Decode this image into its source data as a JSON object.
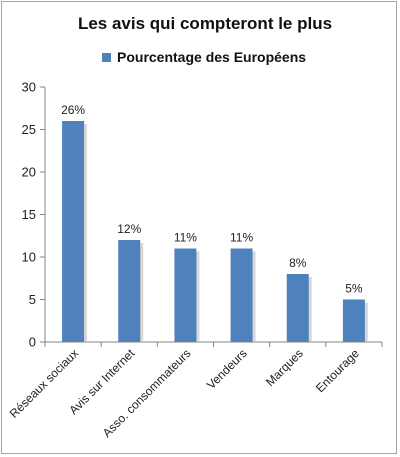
{
  "chart_data": {
    "type": "bar",
    "title": "Les avis qui compteront le plus",
    "legend": {
      "position": "top",
      "entries": [
        "Pourcentage des Européens"
      ]
    },
    "categories": [
      "Réseaux sociaux",
      "Avis sur Internet",
      "Asso. consommateurs",
      "Vendeurs",
      "Marques",
      "Entourage"
    ],
    "series": [
      {
        "name": "Pourcentage des Européens",
        "values": [
          26,
          12,
          11,
          11,
          8,
          5
        ],
        "data_labels": [
          "26%",
          "12%",
          "11%",
          "11%",
          "8%",
          "5%"
        ],
        "color": "#4f81bd"
      }
    ],
    "ylim": [
      0,
      30
    ],
    "yticks": [
      0,
      5,
      10,
      15,
      20,
      25,
      30
    ],
    "grid": false
  }
}
